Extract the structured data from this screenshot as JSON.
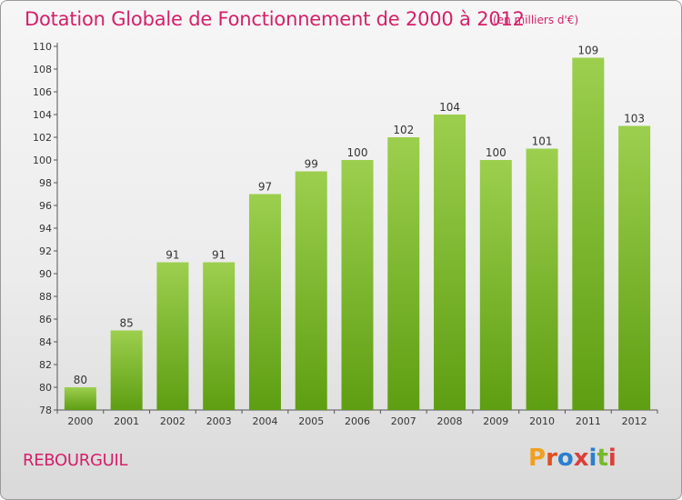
{
  "header": {
    "title": "Dotation Globale de Fonctionnement de 2000 à 2012",
    "unit": "(en milliers d'€)"
  },
  "footer": {
    "commune": "REBOURGUIL",
    "logo": "Proxiti"
  },
  "colors": {
    "title": "#d4206a",
    "bar_top": "#9ccf4e",
    "bar_bottom": "#5e9e12",
    "logo": [
      "#f0a020",
      "#e05020",
      "#2a7fd0",
      "#d8403a",
      "#2a7fd0",
      "#78b82a",
      "#d8403a"
    ]
  },
  "chart_data": {
    "type": "bar",
    "title": "Dotation Globale de Fonctionnement de 2000 à 2012",
    "categories": [
      "2000",
      "2001",
      "2002",
      "2003",
      "2004",
      "2005",
      "2006",
      "2007",
      "2008",
      "2009",
      "2010",
      "2011",
      "2012"
    ],
    "values": [
      80,
      85,
      91,
      91,
      97,
      99,
      100,
      102,
      104,
      100,
      101,
      109,
      103
    ],
    "xlabel": "",
    "ylabel": "",
    "ylim": [
      78,
      110
    ],
    "yticks": [
      78,
      80,
      82,
      84,
      86,
      88,
      90,
      92,
      94,
      96,
      98,
      100,
      102,
      104,
      106,
      108,
      110
    ],
    "grid": false,
    "data_labels": true
  }
}
